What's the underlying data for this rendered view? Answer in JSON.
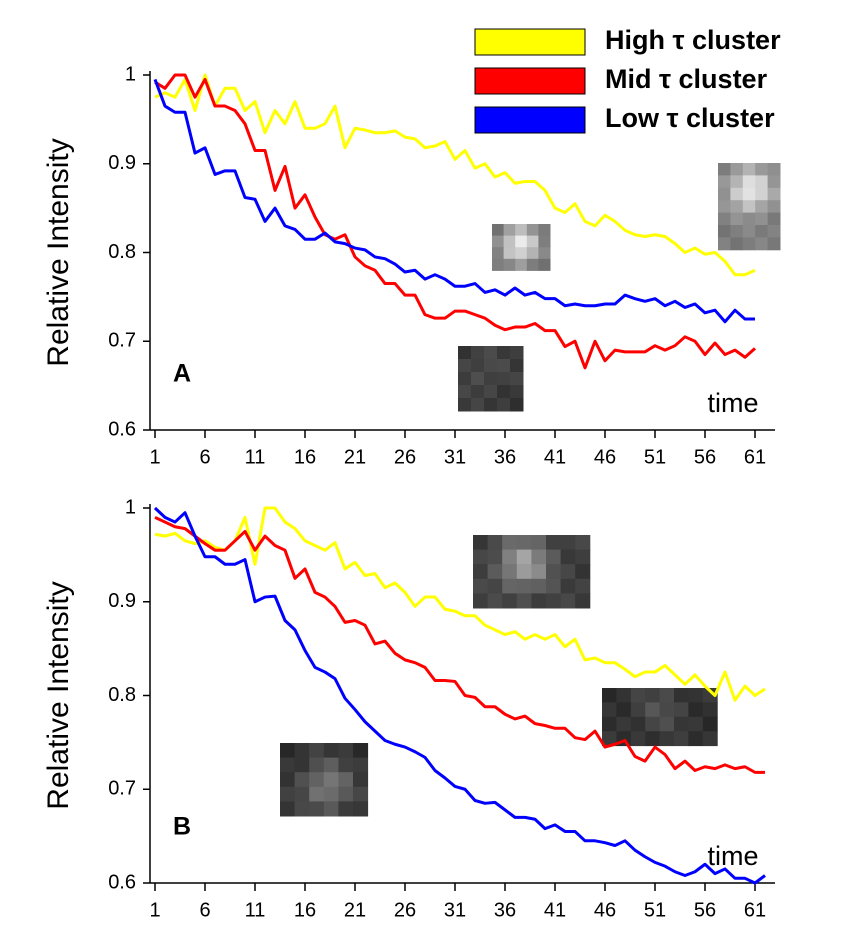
{
  "chart_data": [
    {
      "type": "line",
      "label": "A",
      "ylabel": "Relative Intensity",
      "xlabel": "time",
      "x": [
        1,
        2,
        3,
        4,
        5,
        6,
        7,
        8,
        9,
        10,
        11,
        12,
        13,
        14,
        15,
        16,
        17,
        18,
        19,
        20,
        21,
        22,
        23,
        24,
        25,
        26,
        27,
        28,
        29,
        30,
        31,
        32,
        33,
        34,
        35,
        36,
        37,
        38,
        39,
        40,
        41,
        42,
        43,
        44,
        45,
        46,
        47,
        48,
        49,
        50,
        51,
        52,
        53,
        54,
        55,
        56,
        57,
        58,
        59,
        60,
        61
      ],
      "xlim": [
        0.5,
        63
      ],
      "ylim": [
        0.6,
        1
      ],
      "xticks": [
        1,
        6,
        11,
        16,
        21,
        26,
        31,
        36,
        41,
        46,
        51,
        56,
        61
      ],
      "yticks": [
        0.6,
        0.7,
        0.8,
        0.9,
        1
      ],
      "series": [
        {
          "name": "High τ cluster",
          "color": "#ffff00",
          "values": [
            0.975,
            0.98,
            0.975,
            0.995,
            0.96,
            1.0,
            0.965,
            0.985,
            0.985,
            0.96,
            0.97,
            0.935,
            0.96,
            0.945,
            0.97,
            0.94,
            0.94,
            0.945,
            0.965,
            0.918,
            0.94,
            0.938,
            0.935,
            0.935,
            0.937,
            0.93,
            0.928,
            0.918,
            0.92,
            0.925,
            0.905,
            0.915,
            0.895,
            0.9,
            0.885,
            0.89,
            0.878,
            0.88,
            0.88,
            0.87,
            0.85,
            0.845,
            0.855,
            0.835,
            0.83,
            0.842,
            0.835,
            0.825,
            0.82,
            0.818,
            0.82,
            0.818,
            0.81,
            0.8,
            0.805,
            0.798,
            0.8,
            0.79,
            0.775,
            0.775,
            0.78
          ]
        },
        {
          "name": "Mid τ cluster",
          "color": "#ff0000",
          "values": [
            0.992,
            0.985,
            1.0,
            1.0,
            0.975,
            0.995,
            0.965,
            0.965,
            0.96,
            0.945,
            0.915,
            0.915,
            0.87,
            0.897,
            0.85,
            0.865,
            0.84,
            0.82,
            0.815,
            0.82,
            0.795,
            0.785,
            0.78,
            0.765,
            0.765,
            0.752,
            0.752,
            0.73,
            0.726,
            0.726,
            0.734,
            0.734,
            0.73,
            0.726,
            0.718,
            0.713,
            0.716,
            0.716,
            0.72,
            0.712,
            0.712,
            0.694,
            0.7,
            0.67,
            0.7,
            0.678,
            0.69,
            0.688,
            0.688,
            0.688,
            0.695,
            0.69,
            0.695,
            0.705,
            0.7,
            0.685,
            0.698,
            0.685,
            0.69,
            0.682,
            0.692
          ]
        },
        {
          "name": "Low τ cluster",
          "color": "#0000ff",
          "values": [
            0.995,
            0.965,
            0.958,
            0.958,
            0.912,
            0.918,
            0.888,
            0.892,
            0.892,
            0.862,
            0.86,
            0.835,
            0.85,
            0.83,
            0.826,
            0.815,
            0.815,
            0.822,
            0.812,
            0.81,
            0.805,
            0.803,
            0.795,
            0.793,
            0.787,
            0.778,
            0.78,
            0.77,
            0.775,
            0.77,
            0.762,
            0.762,
            0.765,
            0.755,
            0.758,
            0.752,
            0.76,
            0.752,
            0.755,
            0.748,
            0.748,
            0.74,
            0.742,
            0.74,
            0.74,
            0.742,
            0.742,
            0.752,
            0.748,
            0.745,
            0.748,
            0.74,
            0.745,
            0.738,
            0.742,
            0.732,
            0.735,
            0.722,
            0.735,
            0.725,
            0.725
          ]
        }
      ]
    },
    {
      "type": "line",
      "label": "B",
      "ylabel": "Relative Intensity",
      "xlabel": "time",
      "x": [
        1,
        2,
        3,
        4,
        5,
        6,
        7,
        8,
        9,
        10,
        11,
        12,
        13,
        14,
        15,
        16,
        17,
        18,
        19,
        20,
        21,
        22,
        23,
        24,
        25,
        26,
        27,
        28,
        29,
        30,
        31,
        32,
        33,
        34,
        35,
        36,
        37,
        38,
        39,
        40,
        41,
        42,
        43,
        44,
        45,
        46,
        47,
        48,
        49,
        50,
        51,
        52,
        53,
        54,
        55,
        56,
        57,
        58,
        59,
        60,
        61,
        62
      ],
      "xlim": [
        0.5,
        63
      ],
      "ylim": [
        0.6,
        1
      ],
      "xticks": [
        1,
        6,
        11,
        16,
        21,
        26,
        31,
        36,
        41,
        46,
        51,
        56,
        61
      ],
      "yticks": [
        0.6,
        0.7,
        0.8,
        0.9,
        1
      ],
      "series": [
        {
          "color": "#ffff00",
          "values": [
            0.972,
            0.97,
            0.973,
            0.965,
            0.962,
            0.965,
            0.958,
            0.955,
            0.965,
            0.99,
            0.94,
            1.0,
            1.0,
            0.985,
            0.978,
            0.965,
            0.96,
            0.955,
            0.963,
            0.935,
            0.942,
            0.928,
            0.93,
            0.915,
            0.92,
            0.91,
            0.895,
            0.905,
            0.905,
            0.892,
            0.89,
            0.885,
            0.885,
            0.875,
            0.87,
            0.865,
            0.868,
            0.86,
            0.865,
            0.86,
            0.865,
            0.852,
            0.86,
            0.838,
            0.84,
            0.835,
            0.835,
            0.828,
            0.82,
            0.825,
            0.825,
            0.832,
            0.822,
            0.812,
            0.822,
            0.81,
            0.8,
            0.825,
            0.795,
            0.81,
            0.8,
            0.807
          ]
        },
        {
          "color": "#ff0000",
          "values": [
            0.99,
            0.985,
            0.98,
            0.978,
            0.97,
            0.962,
            0.955,
            0.955,
            0.965,
            0.975,
            0.955,
            0.97,
            0.96,
            0.955,
            0.925,
            0.935,
            0.91,
            0.905,
            0.895,
            0.878,
            0.88,
            0.875,
            0.855,
            0.858,
            0.845,
            0.838,
            0.835,
            0.83,
            0.816,
            0.816,
            0.815,
            0.8,
            0.798,
            0.788,
            0.788,
            0.78,
            0.775,
            0.778,
            0.77,
            0.768,
            0.765,
            0.765,
            0.755,
            0.753,
            0.762,
            0.745,
            0.748,
            0.752,
            0.735,
            0.73,
            0.745,
            0.737,
            0.722,
            0.73,
            0.72,
            0.724,
            0.722,
            0.726,
            0.722,
            0.724,
            0.718,
            0.718
          ]
        },
        {
          "color": "#0000ff",
          "values": [
            1.0,
            0.99,
            0.985,
            0.995,
            0.97,
            0.948,
            0.948,
            0.94,
            0.94,
            0.945,
            0.9,
            0.905,
            0.906,
            0.88,
            0.87,
            0.848,
            0.83,
            0.825,
            0.818,
            0.797,
            0.785,
            0.772,
            0.762,
            0.752,
            0.748,
            0.745,
            0.74,
            0.734,
            0.72,
            0.712,
            0.703,
            0.7,
            0.688,
            0.685,
            0.686,
            0.678,
            0.67,
            0.67,
            0.668,
            0.658,
            0.662,
            0.655,
            0.655,
            0.645,
            0.645,
            0.643,
            0.64,
            0.645,
            0.635,
            0.628,
            0.622,
            0.618,
            0.612,
            0.608,
            0.612,
            0.62,
            0.61,
            0.615,
            0.605,
            0.605,
            0.6,
            0.608
          ]
        }
      ]
    }
  ]
}
